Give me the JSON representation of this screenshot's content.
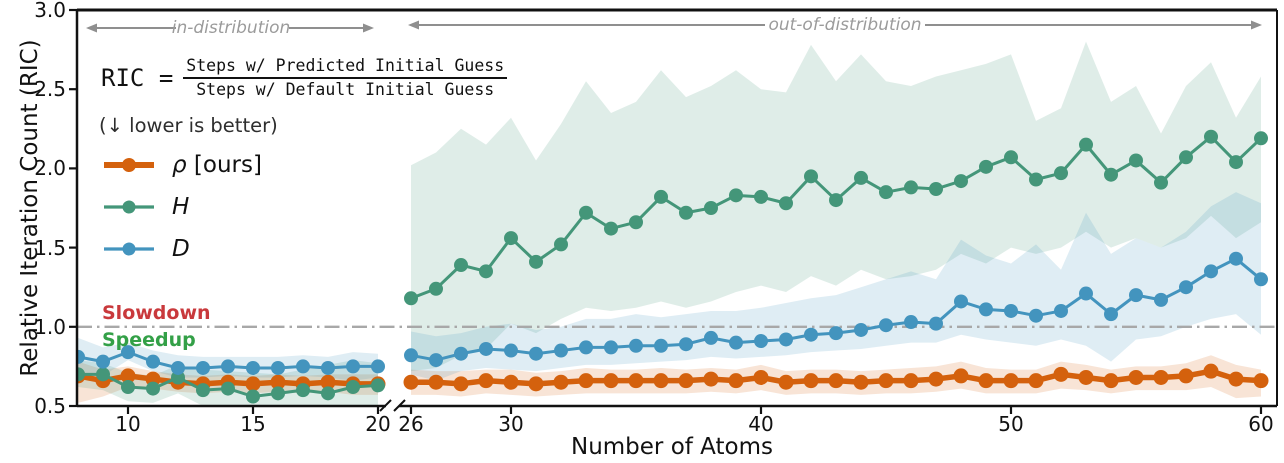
{
  "figure": {
    "y_axis_label": "Relative Iteration Count (RIC)",
    "x_axis_label": "Number of Atoms",
    "formula": {
      "lhs": "RIC",
      "equals": "=",
      "numerator": "Steps w/ Predicted Initial Guess",
      "denominator": "Steps w/ Default Initial Guess"
    },
    "note": "(↓ lower is better)",
    "legend": [
      {
        "symbol": "ρ",
        "suffix": " [ours]",
        "series": "rho",
        "color": "#d4610d"
      },
      {
        "symbol": "H",
        "suffix": "",
        "series": "H",
        "color": "#449679"
      },
      {
        "symbol": "D",
        "suffix": "",
        "series": "D",
        "color": "#4394be"
      }
    ],
    "annotations": {
      "slowdown": {
        "text": "Slowdown",
        "color": "#c9393c"
      },
      "speedup": {
        "text": "Speedup",
        "color": "#33a047"
      },
      "in_distribution": "in-distribution",
      "out_of_distribution": "out-of-distribution"
    }
  },
  "chart_data": {
    "type": "line",
    "title": "",
    "xlabel": "Number of Atoms",
    "ylabel": "Relative Iteration Count (RIC)",
    "ylim": [
      0.5,
      3.0
    ],
    "y_ticks": [
      "0.5",
      "1.0",
      "1.5",
      "2.0",
      "2.5",
      "3.0"
    ],
    "grid": false,
    "legend_position": "upper-left",
    "reference_line": {
      "y": 1.0,
      "style": "dash-dot",
      "color": "#a8a8a8",
      "above_label": "Slowdown",
      "below_label": "Speedup"
    },
    "broken_x_axis": true,
    "panels": [
      {
        "name": "in-distribution",
        "x": [
          8,
          9,
          10,
          11,
          12,
          13,
          14,
          15,
          16,
          17,
          18,
          19,
          20
        ],
        "x_ticks": [
          10,
          15,
          20
        ],
        "series": [
          {
            "key": "rho",
            "name": "ρ [ours]",
            "color": "#d4610d",
            "values": [
              0.69,
              0.66,
              0.69,
              0.67,
              0.65,
              0.64,
              0.65,
              0.64,
              0.65,
              0.64,
              0.65,
              0.64,
              0.64
            ],
            "upper": [
              0.78,
              0.73,
              0.75,
              0.72,
              0.7,
              0.69,
              0.7,
              0.69,
              0.7,
              0.69,
              0.7,
              0.7,
              0.7
            ],
            "lower": [
              0.52,
              0.56,
              0.62,
              0.61,
              0.59,
              0.58,
              0.59,
              0.58,
              0.59,
              0.58,
              0.59,
              0.57,
              0.57
            ]
          },
          {
            "key": "H",
            "name": "H",
            "color": "#449679",
            "values": [
              0.7,
              0.7,
              0.62,
              0.61,
              0.68,
              0.6,
              0.61,
              0.56,
              0.58,
              0.6,
              0.58,
              0.62,
              0.63
            ],
            "upper": [
              0.79,
              0.77,
              0.71,
              0.69,
              0.76,
              0.73,
              0.72,
              0.71,
              0.7,
              0.73,
              0.76,
              0.79,
              0.77
            ],
            "lower": [
              0.62,
              0.6,
              0.53,
              0.52,
              0.58,
              0.5,
              0.5,
              0.46,
              0.47,
              0.48,
              0.46,
              0.5,
              0.5
            ]
          },
          {
            "key": "D",
            "name": "D",
            "color": "#4394be",
            "values": [
              0.81,
              0.78,
              0.84,
              0.78,
              0.74,
              0.74,
              0.75,
              0.74,
              0.74,
              0.75,
              0.74,
              0.75,
              0.75
            ],
            "upper": [
              0.93,
              0.87,
              0.9,
              0.85,
              0.82,
              0.81,
              0.81,
              0.81,
              0.81,
              0.82,
              0.81,
              0.84,
              0.83
            ],
            "lower": [
              0.7,
              0.69,
              0.79,
              0.72,
              0.68,
              0.68,
              0.69,
              0.68,
              0.68,
              0.69,
              0.68,
              0.66,
              0.68
            ]
          }
        ]
      },
      {
        "name": "out-of-distribution",
        "x": [
          26,
          27,
          28,
          29,
          30,
          31,
          32,
          33,
          34,
          35,
          36,
          37,
          38,
          39,
          40,
          41,
          42,
          43,
          44,
          45,
          46,
          47,
          48,
          49,
          50,
          51,
          52,
          53,
          54,
          55,
          56,
          57,
          58,
          59,
          60
        ],
        "x_ticks": [
          26,
          30,
          40,
          50,
          60
        ],
        "series": [
          {
            "key": "rho",
            "name": "ρ [ours]",
            "color": "#d4610d",
            "values": [
              0.65,
              0.65,
              0.64,
              0.66,
              0.65,
              0.64,
              0.65,
              0.66,
              0.66,
              0.66,
              0.66,
              0.66,
              0.67,
              0.66,
              0.68,
              0.65,
              0.66,
              0.66,
              0.65,
              0.66,
              0.66,
              0.67,
              0.69,
              0.66,
              0.66,
              0.66,
              0.7,
              0.68,
              0.66,
              0.68,
              0.68,
              0.69,
              0.72,
              0.67,
              0.66
            ],
            "upper": [
              0.73,
              0.72,
              0.72,
              0.73,
              0.73,
              0.71,
              0.72,
              0.74,
              0.73,
              0.73,
              0.74,
              0.73,
              0.74,
              0.73,
              0.76,
              0.72,
              0.73,
              0.73,
              0.72,
              0.73,
              0.74,
              0.75,
              0.78,
              0.74,
              0.73,
              0.73,
              0.78,
              0.76,
              0.73,
              0.75,
              0.75,
              0.77,
              0.82,
              0.76,
              0.73
            ],
            "lower": [
              0.57,
              0.57,
              0.56,
              0.58,
              0.57,
              0.56,
              0.57,
              0.58,
              0.58,
              0.58,
              0.58,
              0.58,
              0.59,
              0.58,
              0.6,
              0.57,
              0.58,
              0.58,
              0.57,
              0.58,
              0.58,
              0.59,
              0.61,
              0.58,
              0.58,
              0.58,
              0.61,
              0.6,
              0.58,
              0.6,
              0.6,
              0.6,
              0.62,
              0.55,
              0.56
            ]
          },
          {
            "key": "H",
            "name": "H",
            "color": "#449679",
            "values": [
              1.18,
              1.24,
              1.39,
              1.35,
              1.56,
              1.41,
              1.52,
              1.72,
              1.62,
              1.66,
              1.82,
              1.72,
              1.75,
              1.83,
              1.82,
              1.78,
              1.95,
              1.8,
              1.94,
              1.85,
              1.88,
              1.87,
              1.92,
              2.01,
              2.07,
              1.93,
              1.97,
              2.15,
              1.96,
              2.05,
              1.91,
              2.07,
              2.2,
              2.04,
              2.19
            ],
            "upper": [
              2.02,
              2.1,
              2.25,
              2.15,
              2.32,
              2.05,
              2.28,
              2.55,
              2.35,
              2.42,
              2.62,
              2.45,
              2.52,
              2.62,
              2.5,
              2.48,
              2.78,
              2.55,
              2.72,
              2.55,
              2.52,
              2.58,
              2.62,
              2.66,
              2.72,
              2.3,
              2.38,
              2.8,
              2.42,
              2.52,
              2.22,
              2.52,
              2.67,
              2.32,
              2.58
            ],
            "lower": [
              0.72,
              0.74,
              0.82,
              0.86,
              1.02,
              0.96,
              1.05,
              1.12,
              1.1,
              1.12,
              1.16,
              1.12,
              1.16,
              1.22,
              1.26,
              1.22,
              1.32,
              1.26,
              1.36,
              1.3,
              1.32,
              1.36,
              1.46,
              1.4,
              1.5,
              1.46,
              1.5,
              1.6,
              1.5,
              1.56,
              1.5,
              1.56,
              1.7,
              1.56,
              1.66
            ]
          },
          {
            "key": "D",
            "name": "D",
            "color": "#4394be",
            "values": [
              0.82,
              0.79,
              0.83,
              0.86,
              0.85,
              0.83,
              0.85,
              0.87,
              0.87,
              0.88,
              0.88,
              0.89,
              0.93,
              0.9,
              0.91,
              0.92,
              0.95,
              0.96,
              0.98,
              1.01,
              1.03,
              1.02,
              1.16,
              1.11,
              1.1,
              1.07,
              1.1,
              1.21,
              1.08,
              1.2,
              1.17,
              1.25,
              1.35,
              1.43,
              1.3
            ],
            "upper": [
              0.97,
              0.94,
              0.96,
              1.0,
              1.02,
              0.98,
              1.0,
              1.05,
              1.05,
              1.08,
              1.06,
              1.08,
              1.1,
              1.1,
              1.12,
              1.15,
              1.18,
              1.2,
              1.25,
              1.3,
              1.35,
              1.3,
              1.55,
              1.45,
              1.4,
              1.52,
              1.36,
              1.72,
              1.46,
              1.56,
              1.5,
              1.6,
              1.76,
              1.85,
              1.78
            ],
            "lower": [
              0.7,
              0.66,
              0.72,
              0.74,
              0.73,
              0.72,
              0.74,
              0.76,
              0.76,
              0.77,
              0.78,
              0.79,
              0.81,
              0.8,
              0.81,
              0.82,
              0.84,
              0.85,
              0.86,
              0.88,
              0.9,
              0.9,
              0.95,
              0.92,
              0.9,
              0.88,
              0.92,
              0.88,
              0.78,
              0.92,
              0.94,
              1.0,
              1.05,
              1.08,
              0.95
            ]
          }
        ]
      }
    ]
  }
}
